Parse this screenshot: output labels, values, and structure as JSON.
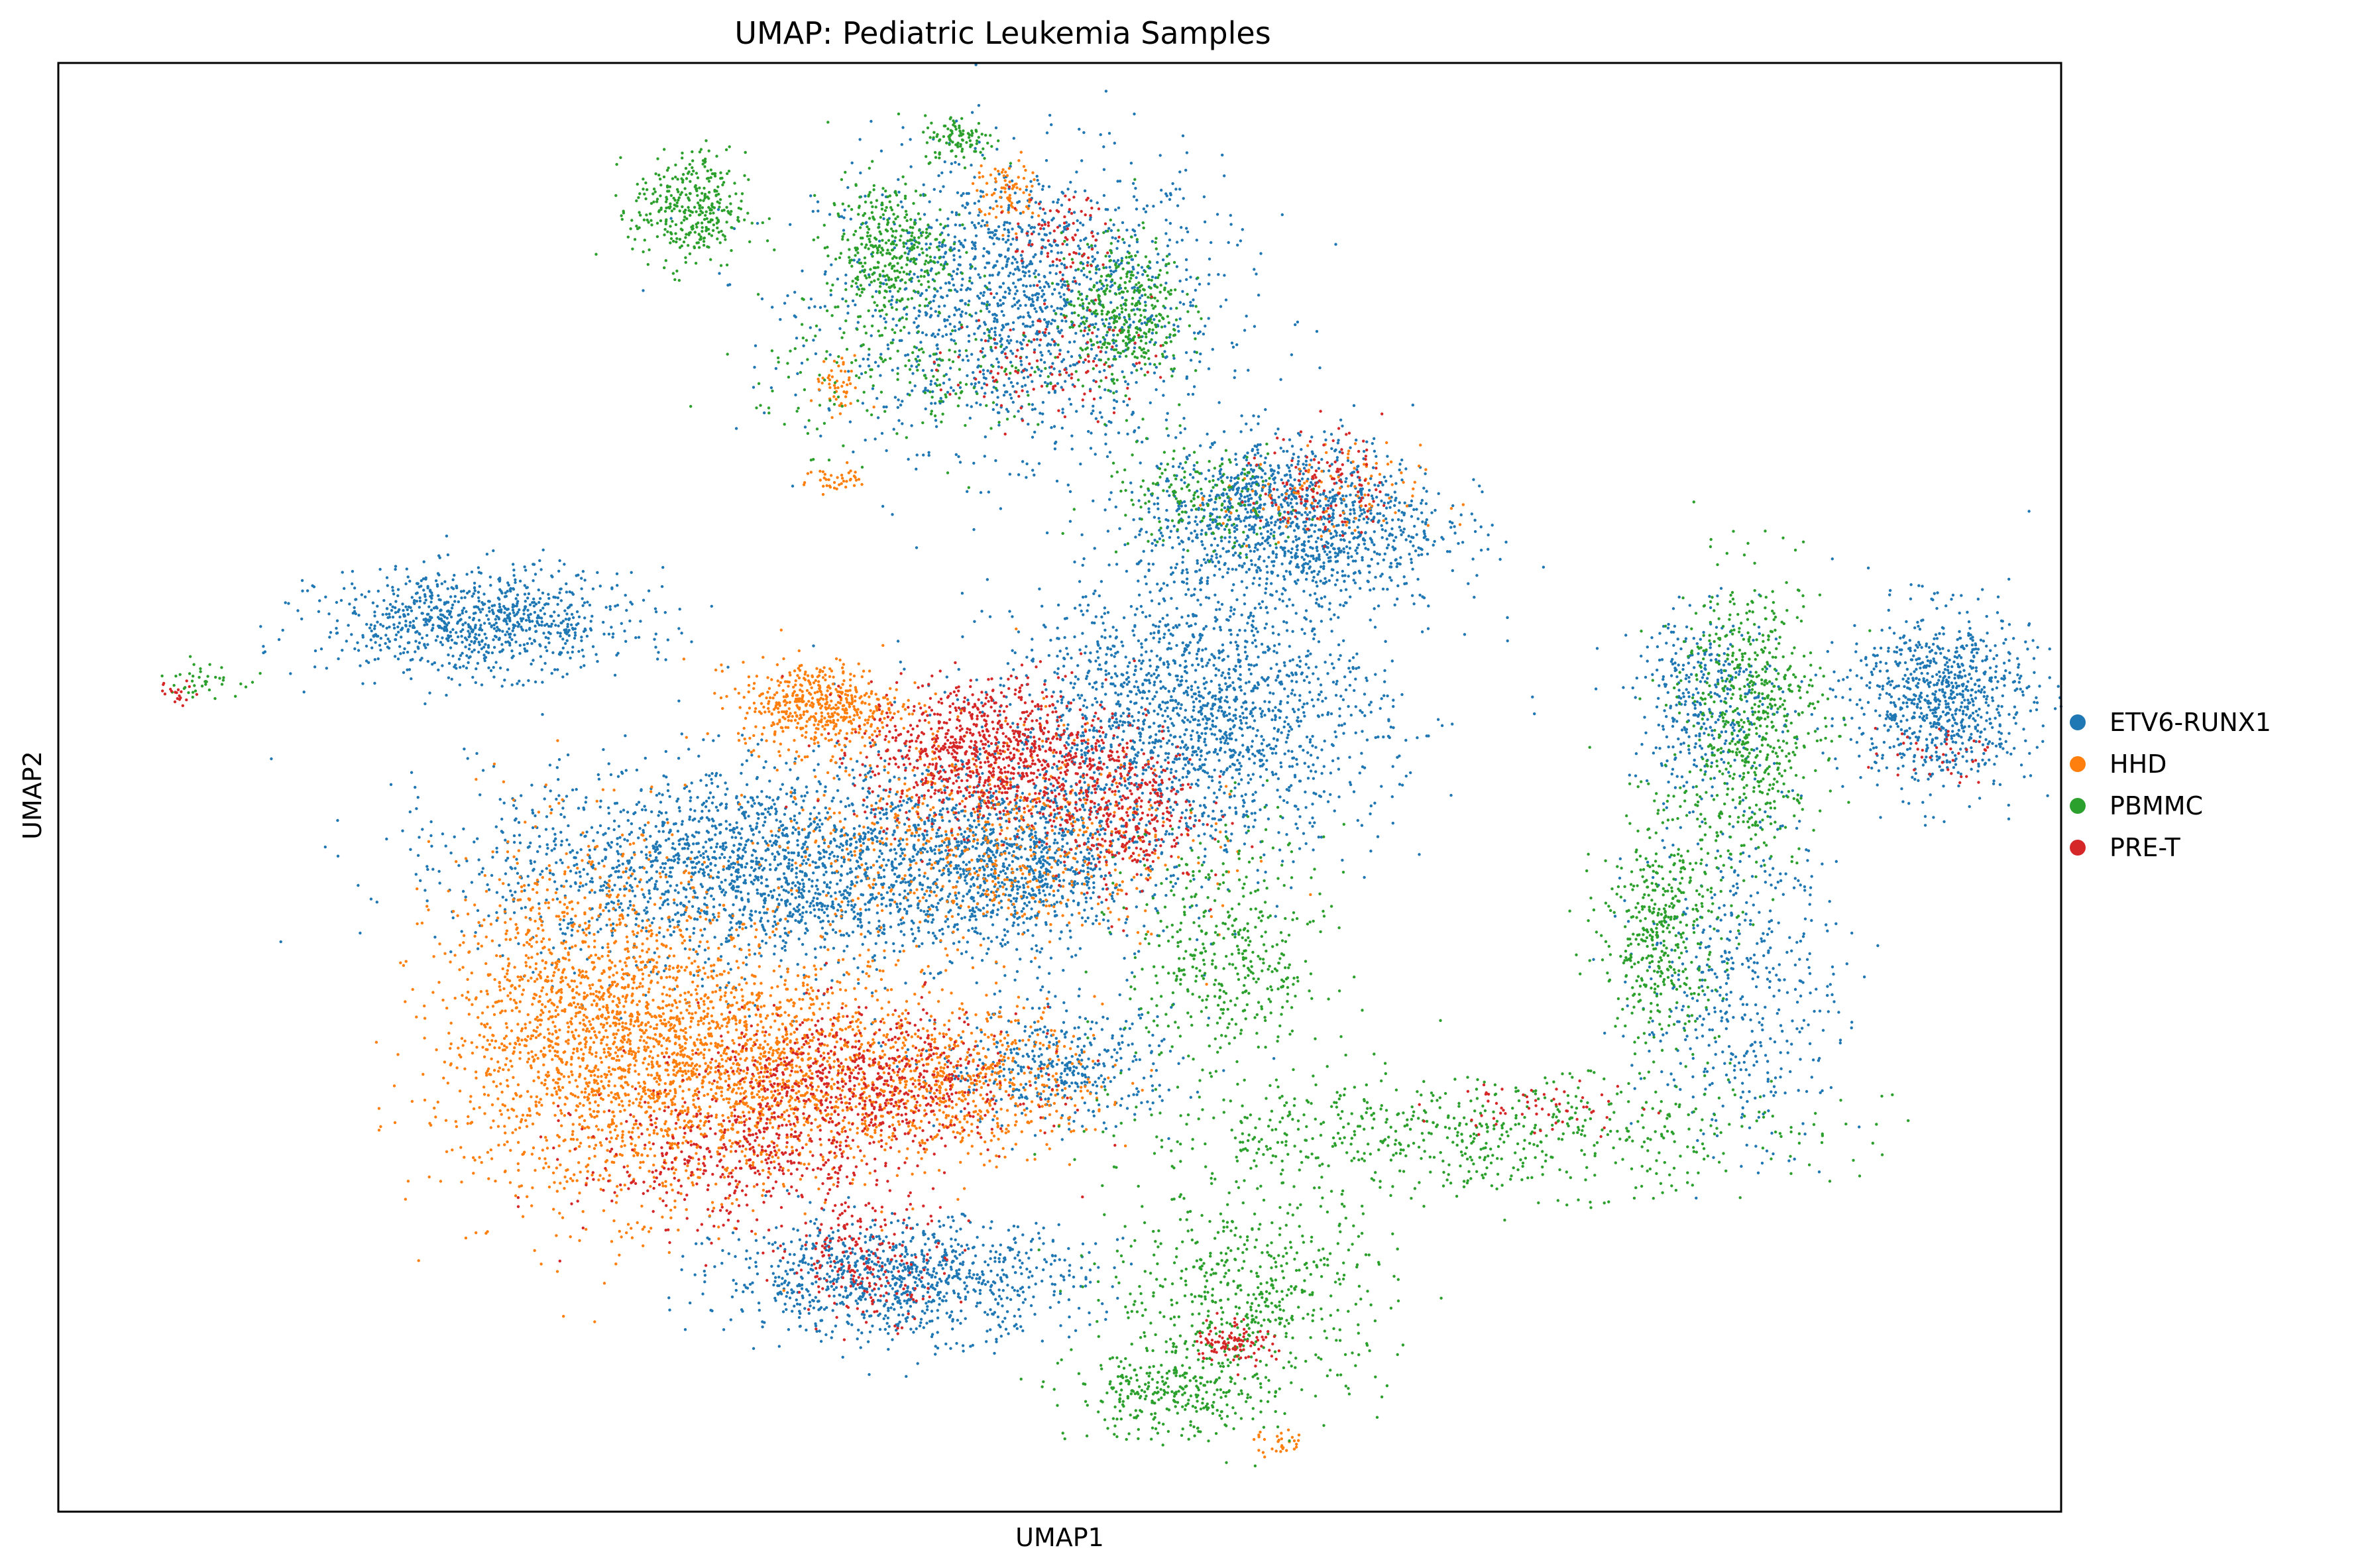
{
  "chart_data": {
    "type": "scatter",
    "title": "UMAP: Pediatric Leukemia Samples",
    "xlabel": "UMAP1",
    "ylabel": "UMAP2",
    "xlim": [
      0,
      100
    ],
    "ylim": [
      0,
      100
    ],
    "ticks": "none",
    "grid": false,
    "legend_position": "right",
    "point_style": "small dots",
    "series": [
      {
        "name": "ETV6-RUNX1",
        "color": "#1f77b4",
        "clusters": [
          {
            "cx": 48.0,
            "cy": 83.5,
            "sx": 5.0,
            "sy": 5.0,
            "n": 1500
          },
          {
            "cx": 59.0,
            "cy": 70.5,
            "sx": 0.8,
            "sy": 0.7,
            "n": 60
          },
          {
            "cx": 61.6,
            "cy": 68.2,
            "sx": 3.8,
            "sy": 3.0,
            "n": 1300
          },
          {
            "cx": 21.0,
            "cy": 61.4,
            "sx": 3.9,
            "sy": 1.8,
            "n": 900
          },
          {
            "cx": 56.5,
            "cy": 54.7,
            "sx": 4.8,
            "sy": 4.5,
            "n": 1800
          },
          {
            "cx": 36.0,
            "cy": 44.6,
            "sx": 7.5,
            "sy": 3.5,
            "n": 2400
          },
          {
            "cx": 48.0,
            "cy": 44.7,
            "sx": 3.0,
            "sy": 3.2,
            "n": 700
          },
          {
            "cx": 42.0,
            "cy": 16.1,
            "sx": 4.5,
            "sy": 2.0,
            "n": 1000
          },
          {
            "cx": 50.0,
            "cy": 30.6,
            "sx": 3.0,
            "sy": 2.0,
            "n": 400
          },
          {
            "cx": 82.3,
            "cy": 56.0,
            "sx": 1.8,
            "sy": 3.0,
            "n": 350
          },
          {
            "cx": 94.0,
            "cy": 56.2,
            "sx": 2.3,
            "sy": 3.0,
            "n": 850
          },
          {
            "cx": 84.0,
            "cy": 37.0,
            "sx": 2.5,
            "sy": 6.0,
            "n": 500
          }
        ]
      },
      {
        "name": "HHD",
        "color": "#ff7f0e",
        "clusters": [
          {
            "cx": 47.4,
            "cy": 91.0,
            "sx": 0.8,
            "sy": 1.2,
            "n": 80
          },
          {
            "cx": 38.9,
            "cy": 77.6,
            "sx": 0.6,
            "sy": 1.0,
            "n": 50
          },
          {
            "cx": 38.9,
            "cy": 71.2,
            "sx": 0.8,
            "sy": 0.5,
            "n": 40
          },
          {
            "cx": 63.0,
            "cy": 70.0,
            "sx": 2.5,
            "sy": 1.8,
            "n": 110
          },
          {
            "cx": 38.0,
            "cy": 55.7,
            "sx": 2.0,
            "sy": 1.5,
            "n": 500
          },
          {
            "cx": 46.0,
            "cy": 46.6,
            "sx": 5.0,
            "sy": 4.0,
            "n": 700
          },
          {
            "cx": 26.5,
            "cy": 33.4,
            "sx": 3.8,
            "sy": 6.0,
            "n": 1700
          },
          {
            "cx": 34.5,
            "cy": 30.6,
            "sx": 4.5,
            "sy": 4.0,
            "n": 1500
          },
          {
            "cx": 45.0,
            "cy": 29.6,
            "sx": 3.5,
            "sy": 2.5,
            "n": 600
          },
          {
            "cx": 61.0,
            "cy": 4.7,
            "sx": 0.6,
            "sy": 0.5,
            "n": 30
          }
        ]
      },
      {
        "name": "PBMMC",
        "color": "#2ca02c",
        "clusters": [
          {
            "cx": 31.5,
            "cy": 89.8,
            "sx": 1.4,
            "sy": 2.0,
            "n": 350
          },
          {
            "cx": 45.0,
            "cy": 94.8,
            "sx": 0.9,
            "sy": 0.8,
            "n": 100
          },
          {
            "cx": 41.4,
            "cy": 87.0,
            "sx": 1.5,
            "sy": 2.5,
            "n": 400
          },
          {
            "cx": 53.2,
            "cy": 83.0,
            "sx": 1.5,
            "sy": 2.5,
            "n": 400
          },
          {
            "cx": 43.0,
            "cy": 78.5,
            "sx": 4.0,
            "sy": 2.5,
            "n": 200
          },
          {
            "cx": 57.0,
            "cy": 69.8,
            "sx": 2.5,
            "sy": 2.0,
            "n": 180
          },
          {
            "cx": 7.1,
            "cy": 57.5,
            "sx": 1.0,
            "sy": 0.6,
            "n": 40
          },
          {
            "cx": 58.3,
            "cy": 38.0,
            "sx": 2.5,
            "sy": 4.5,
            "n": 450
          },
          {
            "cx": 70.5,
            "cy": 26.0,
            "sx": 8.5,
            "sy": 2.0,
            "n": 650
          },
          {
            "cx": 59.5,
            "cy": 15.0,
            "sx": 3.5,
            "sy": 3.5,
            "n": 550
          },
          {
            "cx": 55.5,
            "cy": 8.0,
            "sx": 2.5,
            "sy": 1.5,
            "n": 300
          },
          {
            "cx": 84.5,
            "cy": 54.8,
            "sx": 1.8,
            "sy": 5.0,
            "n": 650
          },
          {
            "cx": 80.0,
            "cy": 40.0,
            "sx": 1.5,
            "sy": 4.0,
            "n": 450
          }
        ]
      },
      {
        "name": "PRE-T",
        "color": "#d62728",
        "clusters": [
          {
            "cx": 50.0,
            "cy": 88.0,
            "sx": 1.2,
            "sy": 1.5,
            "n": 80
          },
          {
            "cx": 49.5,
            "cy": 79.5,
            "sx": 2.5,
            "sy": 2.0,
            "n": 120
          },
          {
            "cx": 63.2,
            "cy": 71.0,
            "sx": 1.5,
            "sy": 2.0,
            "n": 130
          },
          {
            "cx": 6.0,
            "cy": 56.5,
            "sx": 0.5,
            "sy": 0.4,
            "n": 20
          },
          {
            "cx": 46.3,
            "cy": 52.4,
            "sx": 3.0,
            "sy": 2.5,
            "n": 900
          },
          {
            "cx": 53.0,
            "cy": 48.7,
            "sx": 2.0,
            "sy": 2.8,
            "n": 400
          },
          {
            "cx": 40.0,
            "cy": 29.6,
            "sx": 4.0,
            "sy": 2.5,
            "n": 700
          },
          {
            "cx": 34.0,
            "cy": 24.0,
            "sx": 4.0,
            "sy": 2.5,
            "n": 400
          },
          {
            "cx": 40.5,
            "cy": 17.3,
            "sx": 2.0,
            "sy": 2.0,
            "n": 200
          },
          {
            "cx": 58.7,
            "cy": 11.8,
            "sx": 1.0,
            "sy": 0.8,
            "n": 100
          },
          {
            "cx": 74.0,
            "cy": 27.8,
            "sx": 2.5,
            "sy": 1.0,
            "n": 60
          },
          {
            "cx": 93.5,
            "cy": 52.5,
            "sx": 1.5,
            "sy": 1.0,
            "n": 40
          }
        ]
      }
    ]
  }
}
